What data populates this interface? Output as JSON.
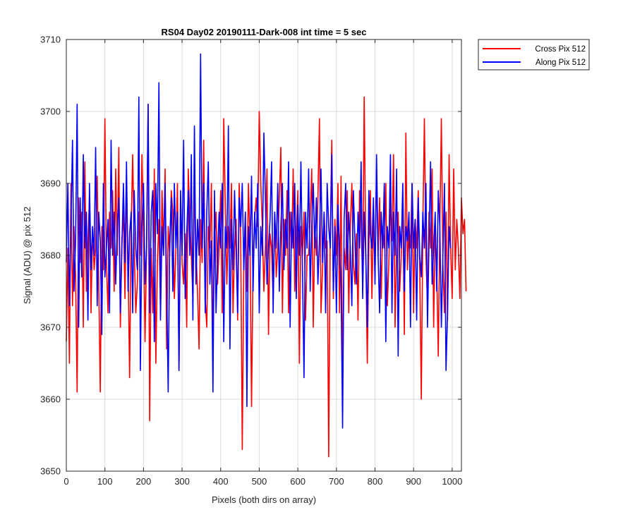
{
  "chart_data": {
    "type": "line",
    "title": "RS04 Day02 20190111-Dark-008 int time = 5 sec",
    "xlabel": "Pixels (both dirs on array)",
    "ylabel": "Signal (ADU) @ pix 512",
    "xlim": [
      0,
      1024
    ],
    "ylim": [
      3650,
      3710
    ],
    "xticks": [
      0,
      100,
      200,
      300,
      400,
      500,
      600,
      700,
      800,
      900,
      1000
    ],
    "yticks": [
      3650,
      3660,
      3670,
      3680,
      3690,
      3700,
      3710
    ],
    "grid": true,
    "legend_position": "outside-top-right",
    "x_step": 4,
    "series": [
      {
        "name": "Cross Pix 512",
        "color": "#ff0000",
        "values": [
          3668,
          3681,
          3665,
          3690,
          3673,
          3684,
          3677,
          3661,
          3688,
          3679,
          3686,
          3670,
          3693,
          3675,
          3682,
          3688,
          3672,
          3684,
          3678,
          3681,
          3691,
          3676,
          3661,
          3684,
          3678,
          3699,
          3679,
          3672,
          3686,
          3681,
          3689,
          3675,
          3692,
          3680,
          3695,
          3670,
          3682,
          3686,
          3674,
          3690,
          3679,
          3663,
          3684,
          3694,
          3681,
          3672,
          3676,
          3686,
          3680,
          3694,
          3683,
          3668,
          3681,
          3701,
          3657,
          3681,
          3672,
          3692,
          3665,
          3679,
          3685,
          3672,
          3689,
          3681,
          3692,
          3667,
          3684,
          3680,
          3689,
          3686,
          3674,
          3681,
          3690,
          3664,
          3688,
          3679,
          3676,
          3683,
          3670,
          3692,
          3685,
          3680,
          3674,
          3689,
          3681,
          3675,
          3667,
          3685,
          3679,
          3696,
          3674,
          3670,
          3684,
          3681,
          3690,
          3667,
          3682,
          3686,
          3676,
          3681,
          3689,
          3672,
          3699,
          3687,
          3676,
          3684,
          3681,
          3690,
          3672,
          3681,
          3685,
          3671,
          3690,
          3682,
          3653,
          3679,
          3686,
          3675,
          3690,
          3682,
          3659,
          3679,
          3685,
          3688,
          3684,
          3700,
          3690,
          3684,
          3675,
          3681,
          3692,
          3669,
          3683,
          3681,
          3674,
          3686,
          3677,
          3681,
          3688,
          3695,
          3672,
          3685,
          3680,
          3689,
          3672,
          3686,
          3681,
          3692,
          3675,
          3683,
          3689,
          3665,
          3684,
          3680,
          3686,
          3671,
          3680,
          3680,
          3685,
          3692,
          3670,
          3684,
          3680,
          3688,
          3699,
          3672,
          3678,
          3686,
          3681,
          3682,
          3652,
          3683,
          3696,
          3674,
          3685,
          3680,
          3690,
          3672,
          3691,
          3662,
          3681,
          3678,
          3689,
          3672,
          3684,
          3690,
          3679,
          3676,
          3683,
          3671,
          3689,
          3685,
          3676,
          3702,
          3681,
          3665,
          3681,
          3689,
          3674,
          3686,
          3677,
          3692,
          3680,
          3688,
          3674,
          3684,
          3681,
          3690,
          3673,
          3679,
          3688,
          3682,
          3694,
          3670,
          3681,
          3686,
          3675,
          3680,
          3688,
          3669,
          3697,
          3678,
          3684,
          3681,
          3690,
          3672,
          3685,
          3681,
          3689,
          3678,
          3660,
          3684,
          3699,
          3680,
          3673,
          3686,
          3681,
          3692,
          3670,
          3684,
          3678,
          3666,
          3684,
          3699,
          3679,
          3672,
          3686,
          3671,
          3694,
          3681,
          3674,
          3692,
          3678,
          3685,
          3681,
          3674,
          3688,
          3683,
          3685,
          3675
        ]
      },
      {
        "name": "Along Pix 512",
        "color": "#0000ff",
        "values": [
          3679,
          3690,
          3673,
          3684,
          3696,
          3675,
          3682,
          3701,
          3670,
          3688,
          3677,
          3694,
          3681,
          3686,
          3671,
          3690,
          3678,
          3684,
          3680,
          3695,
          3673,
          3686,
          3682,
          3669,
          3690,
          3677,
          3681,
          3685,
          3672,
          3696,
          3680,
          3686,
          3676,
          3684,
          3688,
          3672,
          3681,
          3690,
          3679,
          3693,
          3675,
          3683,
          3686,
          3672,
          3689,
          3681,
          3678,
          3702,
          3664,
          3684,
          3690,
          3676,
          3681,
          3701,
          3672,
          3686,
          3689,
          3668,
          3690,
          3683,
          3704,
          3671,
          3684,
          3680,
          3690,
          3676,
          3661,
          3682,
          3688,
          3675,
          3690,
          3681,
          3686,
          3664,
          3689,
          3680,
          3696,
          3674,
          3683,
          3689,
          3680,
          3694,
          3671,
          3698,
          3676,
          3685,
          3680,
          3708,
          3681,
          3690,
          3672,
          3686,
          3693,
          3676,
          3682,
          3661,
          3689,
          3672,
          3680,
          3686,
          3681,
          3690,
          3668,
          3684,
          3681,
          3698,
          3667,
          3685,
          3678,
          3689,
          3681,
          3672,
          3688,
          3684,
          3690,
          3678,
          3686,
          3659,
          3684,
          3680,
          3691,
          3675,
          3686,
          3681,
          3690,
          3672,
          3684,
          3680,
          3697,
          3688,
          3676,
          3681,
          3685,
          3693,
          3672,
          3686,
          3681,
          3690,
          3675,
          3684,
          3690,
          3678,
          3685,
          3681,
          3693,
          3670,
          3686,
          3681,
          3690,
          3674,
          3687,
          3680,
          3693,
          3678,
          3663,
          3686,
          3681,
          3692,
          3675,
          3684,
          3690,
          3681,
          3688,
          3676,
          3682,
          3692,
          3679,
          3686,
          3672,
          3690,
          3684,
          3681,
          3694,
          3675,
          3684,
          3672,
          3687,
          3681,
          3676,
          3656,
          3685,
          3690,
          3678,
          3686,
          3681,
          3673,
          3689,
          3682,
          3676,
          3686,
          3681,
          3693,
          3674,
          3686,
          3680,
          3670,
          3689,
          3683,
          3681,
          3688,
          3676,
          3694,
          3680,
          3672,
          3686,
          3681,
          3690,
          3668,
          3684,
          3681,
          3694,
          3672,
          3686,
          3680,
          3692,
          3666,
          3684,
          3681,
          3690,
          3675,
          3684,
          3682,
          3686,
          3670,
          3690,
          3681,
          3685,
          3671,
          3688,
          3680,
          3677,
          3686,
          3681,
          3690,
          3670,
          3682,
          3693,
          3676,
          3681,
          3686,
          3675,
          3689,
          3684,
          3670,
          3680,
          3690,
          3664,
          3672,
          3684,
          3681
        ]
      }
    ]
  }
}
